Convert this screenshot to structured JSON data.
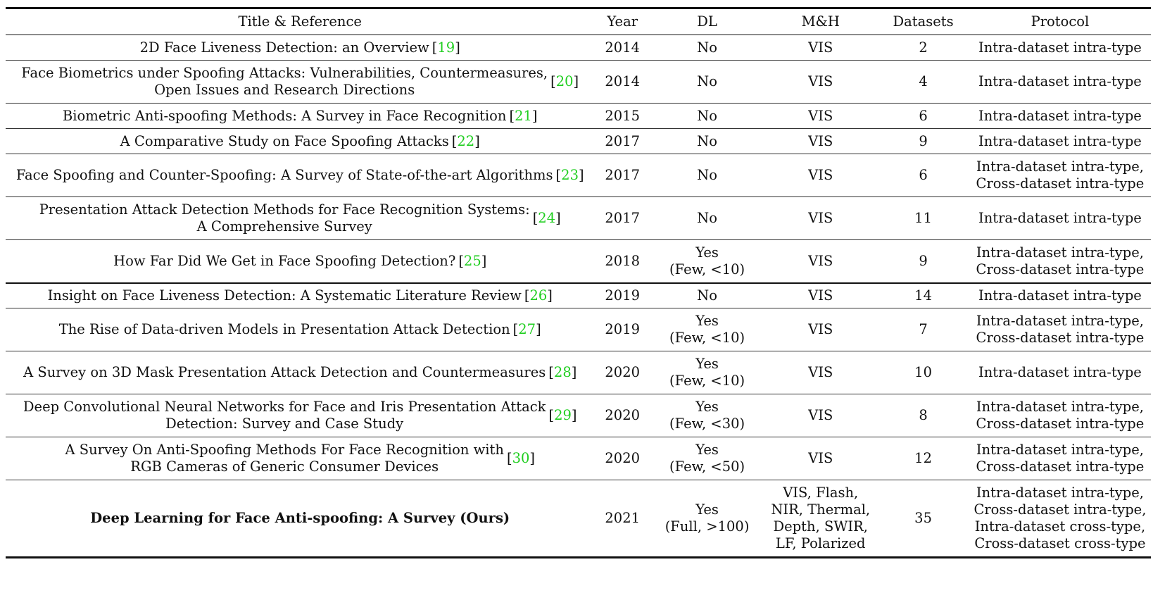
{
  "headers": {
    "title": "Title & Reference",
    "year": "Year",
    "dl": "DL",
    "mh": "M&H",
    "datasets": "Datasets",
    "protocol": "Protocol"
  },
  "rows": [
    {
      "title": [
        "2D Face Liveness Detection: an Overview"
      ],
      "ref": "19",
      "year": "2014",
      "dl": [
        "No"
      ],
      "mh": [
        "VIS"
      ],
      "datasets": "2",
      "protocol": [
        "Intra-dataset intra-type"
      ]
    },
    {
      "title": [
        "Face Biometrics under Spoofing Attacks: Vulnerabilities, Countermeasures,",
        "Open Issues and Research Directions"
      ],
      "ref": "20",
      "year": "2014",
      "dl": [
        "No"
      ],
      "mh": [
        "VIS"
      ],
      "datasets": "4",
      "protocol": [
        "Intra-dataset intra-type"
      ]
    },
    {
      "title": [
        "Biometric Anti-spoofing Methods: A Survey in Face Recognition"
      ],
      "ref": "21",
      "year": "2015",
      "dl": [
        "No"
      ],
      "mh": [
        "VIS"
      ],
      "datasets": "6",
      "protocol": [
        "Intra-dataset intra-type"
      ]
    },
    {
      "title": [
        "A Comparative Study on Face Spoofing Attacks"
      ],
      "ref": "22",
      "year": "2017",
      "dl": [
        "No"
      ],
      "mh": [
        "VIS"
      ],
      "datasets": "9",
      "protocol": [
        "Intra-dataset intra-type"
      ]
    },
    {
      "title": [
        "Face Spoofing and Counter-Spoofing: A Survey of State-of-the-art Algorithms"
      ],
      "ref": "23",
      "year": "2017",
      "dl": [
        "No"
      ],
      "mh": [
        "VIS"
      ],
      "datasets": "6",
      "protocol": [
        "Intra-dataset intra-type,",
        "Cross-dataset intra-type"
      ]
    },
    {
      "title": [
        "Presentation Attack Detection Methods for Face Recognition Systems:",
        "A Comprehensive Survey"
      ],
      "ref": "24",
      "year": "2017",
      "dl": [
        "No"
      ],
      "mh": [
        "VIS"
      ],
      "datasets": "11",
      "protocol": [
        "Intra-dataset intra-type"
      ]
    },
    {
      "title": [
        "How Far Did We Get in Face Spoofing Detection?"
      ],
      "ref": "25",
      "year": "2018",
      "dl": [
        "Yes",
        "(Few, <10)"
      ],
      "mh": [
        "VIS"
      ],
      "datasets": "9",
      "protocol": [
        "Intra-dataset intra-type,",
        "Cross-dataset intra-type"
      ]
    },
    {
      "title": [
        "Insight on Face Liveness Detection: A Systematic Literature Review"
      ],
      "ref": "26",
      "year": "2019",
      "dl": [
        "No"
      ],
      "mh": [
        "VIS"
      ],
      "datasets": "14",
      "protocol": [
        "Intra-dataset intra-type"
      ],
      "thick_top": true
    },
    {
      "title": [
        "The Rise of Data-driven Models in Presentation Attack Detection"
      ],
      "ref": "27",
      "year": "2019",
      "dl": [
        "Yes",
        "(Few, <10)"
      ],
      "mh": [
        "VIS"
      ],
      "datasets": "7",
      "protocol": [
        "Intra-dataset intra-type,",
        "Cross-dataset intra-type"
      ]
    },
    {
      "title": [
        "A Survey on 3D Mask Presentation Attack Detection and Countermeasures"
      ],
      "ref": "28",
      "year": "2020",
      "dl": [
        "Yes",
        "(Few, <10)"
      ],
      "mh": [
        "VIS"
      ],
      "datasets": "10",
      "protocol": [
        "Intra-dataset intra-type"
      ]
    },
    {
      "title": [
        "Deep Convolutional Neural Networks for Face and Iris Presentation Attack",
        "Detection: Survey and Case Study"
      ],
      "ref": "29",
      "year": "2020",
      "dl": [
        "Yes",
        "(Few, <30)"
      ],
      "mh": [
        "VIS"
      ],
      "datasets": "8",
      "protocol": [
        "Intra-dataset intra-type,",
        "Cross-dataset intra-type"
      ]
    },
    {
      "title": [
        "A Survey On Anti-Spoofing Methods For Face Recognition with",
        "RGB Cameras of Generic Consumer Devices"
      ],
      "ref": "30",
      "year": "2020",
      "dl": [
        "Yes",
        "(Few, <50)"
      ],
      "mh": [
        "VIS"
      ],
      "datasets": "12",
      "protocol": [
        "Intra-dataset intra-type,",
        "Cross-dataset intra-type"
      ]
    },
    {
      "title": [
        "Deep Learning for Face Anti-spoofing: A Survey (Ours)"
      ],
      "ref": "",
      "year": "2021",
      "dl": [
        "Yes",
        "(Full, >100)"
      ],
      "mh": [
        "VIS, Flash,",
        "NIR, Thermal,",
        "Depth, SWIR,",
        "LF, Polarized"
      ],
      "datasets": "35",
      "protocol": [
        "Intra-dataset intra-type,",
        "Cross-dataset intra-type,",
        "Intra-dataset cross-type,",
        "Cross-dataset cross-type"
      ],
      "bold": true,
      "last": true
    }
  ],
  "colors": {
    "reference_link": "#1fce1f",
    "text": "#111111"
  }
}
